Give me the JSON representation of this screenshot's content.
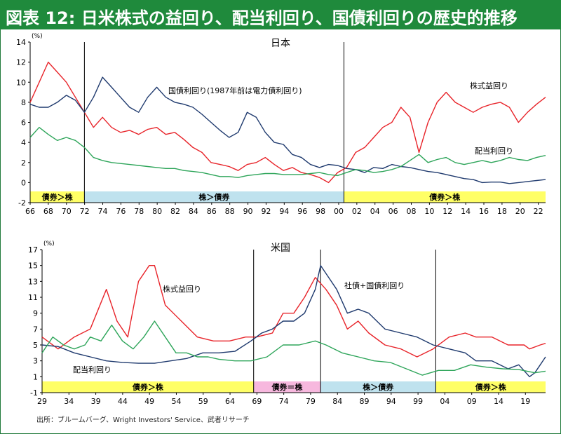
{
  "header": {
    "title": "図表 12: 日米株式の益回り、配当利回り、国債利回りの歴史的推移"
  },
  "source": "出所：ブルームバーグ、Wright Investors' Service、武者リサーチ",
  "colors": {
    "title_bg": "#1f8a3c",
    "red": "#e8242a",
    "navy": "#1f3a6e",
    "green": "#2ea55a",
    "yellow": "#ffff66",
    "blue": "#bfe2ee",
    "pink": "#f7b8de"
  },
  "chart_data": [
    {
      "type": "line",
      "title": "日本",
      "unit_label": "(%)",
      "ylim": [
        -2,
        14
      ],
      "yticks": [
        "-2",
        "0",
        "2",
        "4",
        "6",
        "8",
        "10",
        "12",
        "14"
      ],
      "xlim": [
        1966,
        2023
      ],
      "xtick_labels": [
        "66",
        "68",
        "70",
        "72",
        "74",
        "76",
        "78",
        "80",
        "82",
        "84",
        "86",
        "88",
        "90",
        "92",
        "94",
        "96",
        "98",
        "00",
        "02",
        "04",
        "06",
        "08",
        "10",
        "12",
        "14",
        "16",
        "18",
        "20",
        "22"
      ],
      "dividers": [
        1972,
        2000.7
      ],
      "regimes": [
        {
          "label": "債券＞株",
          "from": 1966,
          "to": 1972,
          "color": "yellow"
        },
        {
          "label": "株＞債券",
          "from": 1972,
          "to": 2000.7,
          "color": "blue"
        },
        {
          "label": "債券＞株",
          "from": 2000.7,
          "to": 2023,
          "color": "yellow"
        }
      ],
      "series": [
        {
          "name": "株式益回り",
          "color": "red",
          "x": [
            1966,
            1967,
            1968,
            1969,
            1970,
            1971,
            1972,
            1973,
            1974,
            1975,
            1976,
            1977,
            1978,
            1979,
            1980,
            1981,
            1982,
            1983,
            1984,
            1985,
            1986,
            1987,
            1988,
            1989,
            1990,
            1991,
            1992,
            1993,
            1994,
            1995,
            1996,
            1997,
            1998,
            1999,
            2000,
            2001,
            2002,
            2003,
            2004,
            2005,
            2006,
            2007,
            2008,
            2009,
            2010,
            2011,
            2012,
            2013,
            2014,
            2015,
            2016,
            2017,
            2018,
            2019,
            2020,
            2021,
            2022,
            2023
          ],
          "values": [
            8,
            10,
            12,
            11,
            10,
            8.5,
            7,
            5.5,
            6.5,
            5.5,
            5,
            5.2,
            4.8,
            5.3,
            5.5,
            4.8,
            5,
            4.3,
            3.5,
            3,
            2,
            1.8,
            1.6,
            1.2,
            1.8,
            2,
            2.5,
            1.8,
            1.2,
            1.5,
            1,
            0.8,
            0.5,
            0,
            1,
            1.5,
            3,
            3.5,
            4.5,
            5.5,
            6,
            7.5,
            6.5,
            3,
            6,
            8,
            9,
            8,
            7.5,
            7,
            7.5,
            7.8,
            8,
            7.5,
            6,
            7,
            7.8,
            8.5
          ]
        },
        {
          "name": "国債利回り(1987年前は電力債利回り)",
          "color": "navy",
          "x": [
            1966,
            1967,
            1968,
            1969,
            1970,
            1971,
            1972,
            1973,
            1974,
            1975,
            1976,
            1977,
            1978,
            1979,
            1980,
            1981,
            1982,
            1983,
            1984,
            1985,
            1986,
            1987,
            1988,
            1989,
            1990,
            1991,
            1992,
            1993,
            1994,
            1995,
            1996,
            1997,
            1998,
            1999,
            2000,
            2001,
            2002,
            2003,
            2004,
            2005,
            2006,
            2007,
            2008,
            2009,
            2010,
            2011,
            2012,
            2013,
            2014,
            2015,
            2016,
            2017,
            2018,
            2019,
            2020,
            2021,
            2022,
            2023
          ],
          "values": [
            7.8,
            7.5,
            7.5,
            8,
            8.7,
            8.2,
            7,
            8.5,
            10.5,
            9.5,
            8.5,
            7.5,
            7,
            8.5,
            9.5,
            8.5,
            8,
            7.8,
            7.5,
            6.8,
            6,
            5.2,
            4.5,
            5,
            7,
            6.5,
            5,
            4,
            3.8,
            2.8,
            2.5,
            1.8,
            1.5,
            1.8,
            1.7,
            1.4,
            1.3,
            1,
            1.5,
            1.4,
            1.8,
            1.6,
            1.5,
            1.3,
            1.1,
            1,
            0.8,
            0.6,
            0.4,
            0.3,
            0,
            0.05,
            0.05,
            -0.1,
            0,
            0.1,
            0.2,
            0.3
          ]
        },
        {
          "name": "配当利回り",
          "color": "green",
          "x": [
            1966,
            1967,
            1968,
            1969,
            1970,
            1971,
            1972,
            1973,
            1974,
            1975,
            1976,
            1977,
            1978,
            1979,
            1980,
            1981,
            1982,
            1983,
            1984,
            1985,
            1986,
            1987,
            1988,
            1989,
            1990,
            1991,
            1992,
            1993,
            1994,
            1995,
            1996,
            1997,
            1998,
            1999,
            2000,
            2001,
            2002,
            2003,
            2004,
            2005,
            2006,
            2007,
            2008,
            2009,
            2010,
            2011,
            2012,
            2013,
            2014,
            2015,
            2016,
            2017,
            2018,
            2019,
            2020,
            2021,
            2022,
            2023
          ],
          "values": [
            4.5,
            5.5,
            4.8,
            4.2,
            4.5,
            4.2,
            3.5,
            2.5,
            2.2,
            2,
            1.9,
            1.8,
            1.7,
            1.6,
            1.5,
            1.4,
            1.4,
            1.2,
            1.1,
            1,
            0.8,
            0.6,
            0.6,
            0.5,
            0.7,
            0.8,
            0.9,
            0.9,
            0.8,
            0.8,
            0.8,
            0.9,
            1,
            0.8,
            0.7,
            1,
            1.3,
            1.2,
            1,
            1.1,
            1.3,
            1.6,
            2.2,
            2.8,
            2,
            2.3,
            2.5,
            2,
            1.8,
            2,
            2.2,
            2,
            2.2,
            2.5,
            2.3,
            2.2,
            2.5,
            2.7
          ]
        }
      ]
    },
    {
      "type": "line",
      "title": "米国",
      "unit_label": "(%)",
      "ylim": [
        -1,
        17
      ],
      "yticks": [
        "-1",
        "1",
        "3",
        "5",
        "7",
        "9",
        "11",
        "13",
        "15",
        "17"
      ],
      "xlim": [
        1929,
        2023
      ],
      "xtick_labels": [
        "29",
        "34",
        "39",
        "44",
        "49",
        "54",
        "59",
        "64",
        "69",
        "74",
        "79",
        "84",
        "89",
        "94",
        "99",
        "04",
        "09",
        "14",
        "19"
      ],
      "dividers": [
        1968.5,
        1981,
        2002.5
      ],
      "regimes": [
        {
          "label": "債券＞株",
          "from": 1929,
          "to": 1968.5,
          "color": "yellow"
        },
        {
          "label": "債券＝株",
          "from": 1968.5,
          "to": 1981,
          "color": "pink"
        },
        {
          "label": "株＞債券",
          "from": 1981,
          "to": 2002.5,
          "color": "blue"
        },
        {
          "label": "債券＞株",
          "from": 2002.5,
          "to": 2023,
          "color": "yellow"
        }
      ],
      "series": [
        {
          "name": "株式益回り",
          "color": "red",
          "x": [
            1929,
            1932,
            1935,
            1938,
            1941,
            1943,
            1945,
            1947,
            1949,
            1950,
            1952,
            1955,
            1958,
            1961,
            1964,
            1967,
            1969,
            1972,
            1974,
            1976,
            1978,
            1980,
            1982,
            1984,
            1986,
            1988,
            1990,
            1993,
            1996,
            1999,
            2002,
            2005,
            2008,
            2010,
            2013,
            2016,
            2019,
            2020,
            2022,
            2023
          ],
          "values": [
            6,
            4.5,
            6,
            7,
            12,
            8,
            6,
            13,
            15,
            15,
            10,
            8,
            6,
            5.5,
            5.5,
            6,
            6,
            6.5,
            9,
            9,
            11,
            13.5,
            12,
            10,
            7,
            8,
            6.5,
            5,
            4.5,
            3.5,
            4.5,
            6,
            6.5,
            6,
            6,
            5,
            5,
            4.5,
            5,
            5.2
          ]
        },
        {
          "name": "社債+国債利回り",
          "color": "navy",
          "x": [
            1929,
            1932,
            1935,
            1938,
            1941,
            1944,
            1947,
            1950,
            1953,
            1956,
            1959,
            1962,
            1965,
            1968,
            1970,
            1972,
            1974,
            1976,
            1978,
            1980,
            1981,
            1982,
            1984,
            1986,
            1988,
            1990,
            1993,
            1996,
            1999,
            2002,
            2005,
            2008,
            2010,
            2013,
            2016,
            2018,
            2020,
            2021,
            2022,
            2023
          ],
          "values": [
            5,
            4.8,
            4,
            3.5,
            3,
            2.8,
            2.7,
            2.7,
            3,
            3.3,
            4,
            4,
            4.2,
            5.5,
            6.5,
            7,
            8,
            8,
            9,
            12,
            15,
            14,
            12,
            9,
            9.5,
            9,
            7,
            6.5,
            6,
            5,
            4.5,
            4,
            3,
            3,
            2,
            2.5,
            1,
            1.5,
            2.5,
            3.5
          ]
        },
        {
          "name": "配当利回り",
          "color": "green",
          "x": [
            1929,
            1931,
            1933,
            1935,
            1937,
            1938,
            1940,
            1942,
            1944,
            1946,
            1948,
            1950,
            1952,
            1954,
            1956,
            1958,
            1960,
            1962,
            1965,
            1968,
            1971,
            1974,
            1977,
            1980,
            1982,
            1985,
            1988,
            1991,
            1994,
            1997,
            2000,
            2003,
            2006,
            2009,
            2012,
            2015,
            2018,
            2021,
            2023
          ],
          "values": [
            4,
            6,
            5,
            4.5,
            5,
            6,
            5.5,
            7.5,
            5.5,
            4.5,
            6,
            8,
            6,
            4,
            4,
            3.5,
            3.5,
            3.2,
            3,
            3,
            3.5,
            5,
            5,
            5.5,
            5,
            4,
            3.5,
            3,
            2.8,
            2,
            1.2,
            1.8,
            1.8,
            2.5,
            2.2,
            2,
            1.9,
            1.5,
            1.7
          ]
        }
      ]
    }
  ],
  "annotations_jp": [
    "株式益回り",
    "国債利回り(1987年前は電力債利回り)",
    "配当利回り"
  ],
  "annotations_us": [
    "株式益回り",
    "社債+国債利回り",
    "配当利回り"
  ]
}
